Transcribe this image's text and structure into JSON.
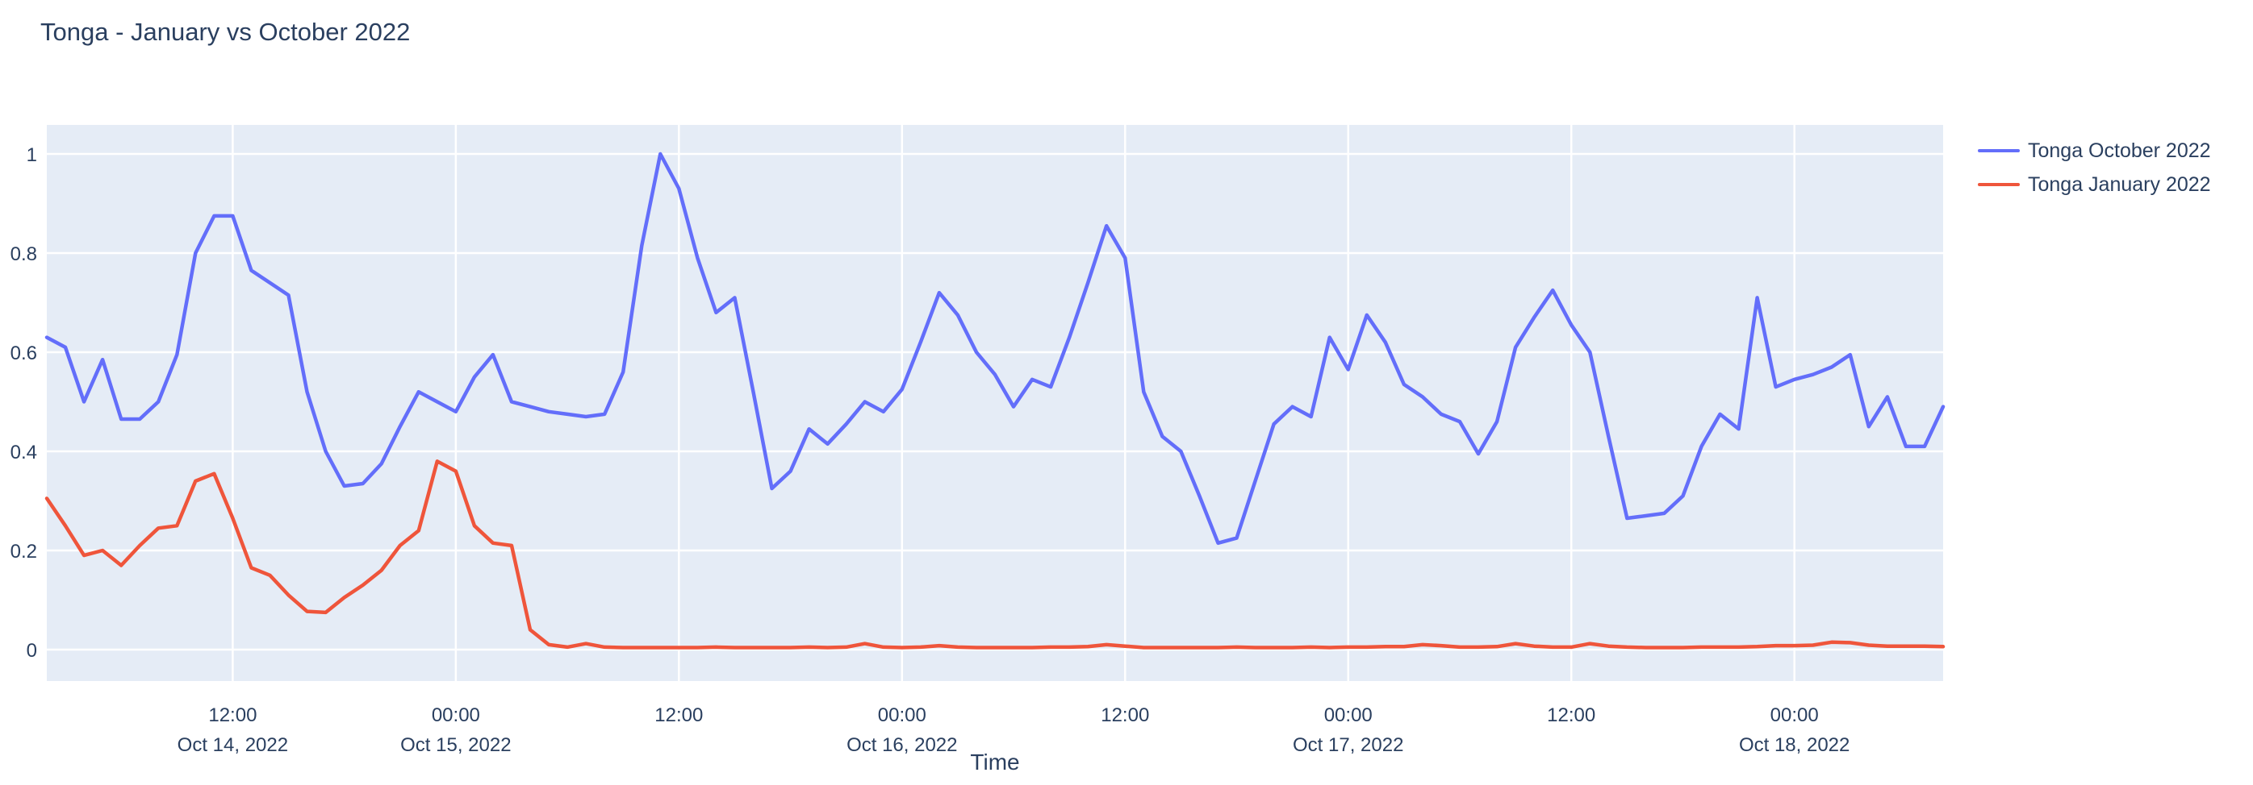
{
  "chart_data": {
    "type": "line",
    "title": "Tonga - January vs October 2022",
    "xlabel": "Time",
    "grid": true,
    "plot_bg_color": "#E5ECF6",
    "gridline_color": "#ffffff",
    "text_color": "#2a3f5f",
    "legend_position": "top-right",
    "x_start": "Oct 14, 2022 02:00",
    "x_step_hours": 1,
    "x_end": "Oct 18, 2022 08:00",
    "ylim": [
      -0.063,
      1.058
    ],
    "yticks": [
      {
        "v": 0,
        "label": "0"
      },
      {
        "v": 0.2,
        "label": "0.2"
      },
      {
        "v": 0.4,
        "label": "0.4"
      },
      {
        "v": 0.6,
        "label": "0.6"
      },
      {
        "v": 0.8,
        "label": "0.8"
      },
      {
        "v": 1,
        "label": "1"
      }
    ],
    "xticks": [
      {
        "hour": 10,
        "time": "12:00",
        "date": "Oct 14, 2022"
      },
      {
        "hour": 22,
        "time": "00:00",
        "date": "Oct 15, 2022"
      },
      {
        "hour": 34,
        "time": "12:00",
        "date": ""
      },
      {
        "hour": 46,
        "time": "00:00",
        "date": "Oct 16, 2022"
      },
      {
        "hour": 58,
        "time": "12:00",
        "date": ""
      },
      {
        "hour": 70,
        "time": "00:00",
        "date": "Oct 17, 2022"
      },
      {
        "hour": 82,
        "time": "12:00",
        "date": ""
      },
      {
        "hour": 94,
        "time": "00:00",
        "date": "Oct 18, 2022"
      }
    ],
    "series": [
      {
        "name": "Tonga October 2022",
        "color": "#636EFA",
        "values": [
          0.63,
          0.61,
          0.5,
          0.585,
          0.465,
          0.465,
          0.5,
          0.595,
          0.8,
          0.875,
          0.875,
          0.765,
          0.74,
          0.715,
          0.52,
          0.4,
          0.33,
          0.335,
          0.375,
          0.45,
          0.52,
          0.5,
          0.48,
          0.55,
          0.595,
          0.5,
          0.49,
          0.48,
          0.475,
          0.47,
          0.475,
          0.56,
          0.815,
          1.0,
          0.93,
          0.79,
          0.68,
          0.71,
          0.52,
          0.325,
          0.36,
          0.445,
          0.415,
          0.455,
          0.5,
          0.48,
          0.525,
          0.62,
          0.72,
          0.675,
          0.6,
          0.555,
          0.49,
          0.545,
          0.53,
          0.63,
          0.74,
          0.855,
          0.79,
          0.52,
          0.43,
          0.4,
          0.31,
          0.215,
          0.225,
          0.34,
          0.455,
          0.49,
          0.47,
          0.63,
          0.565,
          0.675,
          0.62,
          0.535,
          0.51,
          0.475,
          0.46,
          0.395,
          0.46,
          0.61,
          0.67,
          0.725,
          0.655,
          0.6,
          0.43,
          0.265,
          0.27,
          0.275,
          0.31,
          0.41,
          0.475,
          0.445,
          0.71,
          0.53,
          0.545,
          0.555,
          0.57,
          0.595,
          0.45,
          0.51,
          0.41,
          0.41,
          0.49
        ]
      },
      {
        "name": "Tonga January 2022",
        "color": "#EF553B",
        "values": [
          0.305,
          0.25,
          0.19,
          0.2,
          0.17,
          0.21,
          0.245,
          0.25,
          0.34,
          0.355,
          0.265,
          0.165,
          0.15,
          0.11,
          0.077,
          0.075,
          0.105,
          0.13,
          0.16,
          0.21,
          0.24,
          0.38,
          0.36,
          0.25,
          0.215,
          0.21,
          0.04,
          0.01,
          0.005,
          0.012,
          0.005,
          0.004,
          0.004,
          0.004,
          0.004,
          0.004,
          0.005,
          0.004,
          0.004,
          0.004,
          0.004,
          0.005,
          0.004,
          0.005,
          0.012,
          0.005,
          0.004,
          0.005,
          0.008,
          0.005,
          0.004,
          0.004,
          0.004,
          0.004,
          0.005,
          0.005,
          0.006,
          0.01,
          0.007,
          0.004,
          0.004,
          0.004,
          0.004,
          0.004,
          0.005,
          0.004,
          0.004,
          0.004,
          0.005,
          0.004,
          0.005,
          0.005,
          0.006,
          0.006,
          0.01,
          0.008,
          0.005,
          0.005,
          0.006,
          0.012,
          0.007,
          0.005,
          0.005,
          0.012,
          0.007,
          0.005,
          0.004,
          0.004,
          0.004,
          0.005,
          0.005,
          0.005,
          0.006,
          0.008,
          0.008,
          0.009,
          0.015,
          0.014,
          0.009,
          0.007,
          0.007,
          0.007,
          0.006
        ]
      }
    ]
  }
}
